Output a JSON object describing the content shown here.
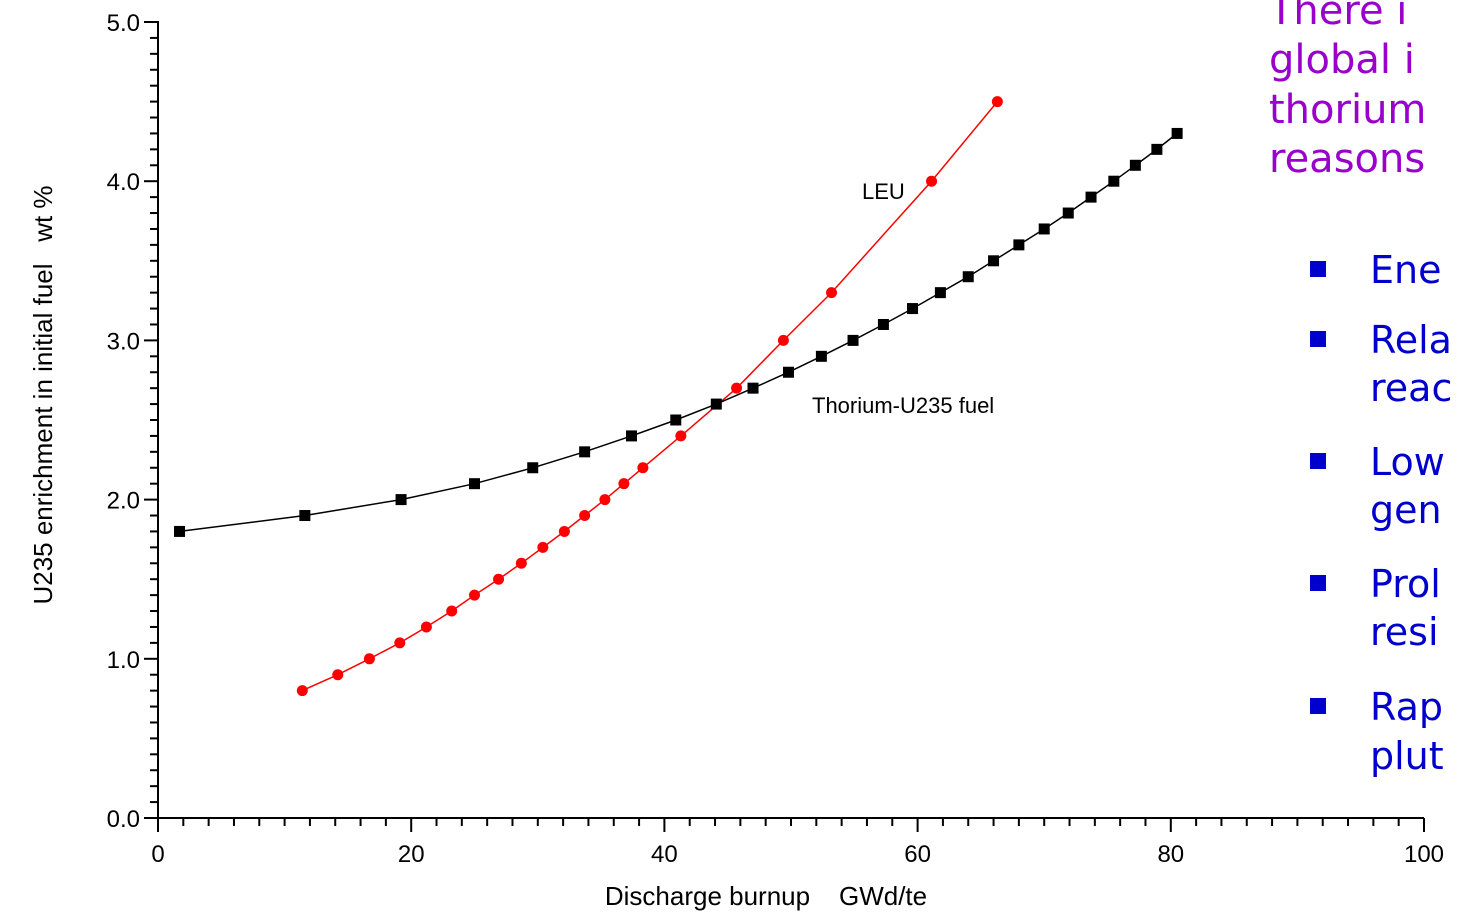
{
  "chart_data": {
    "type": "line",
    "title": "",
    "xlabel": "Discharge burnup    GWd/te",
    "ylabel": "U235 enrichment in initial fuel   wt %",
    "xlim": [
      0,
      100
    ],
    "ylim": [
      0,
      5.0
    ],
    "x_ticks": [
      "0",
      "20",
      "40",
      "60",
      "80",
      "100"
    ],
    "y_ticks": [
      "0.0",
      "1.0",
      "2.0",
      "3.0",
      "4.0",
      "5.0"
    ],
    "grid": false,
    "legend": "none",
    "series": [
      {
        "name": "LEU",
        "color": "#ff0000",
        "marker": "circle",
        "line_style": "solid",
        "points": [
          [
            11.4,
            0.8
          ],
          [
            14.2,
            0.9
          ],
          [
            16.7,
            1.0
          ],
          [
            19.1,
            1.1
          ],
          [
            21.2,
            1.2
          ],
          [
            23.2,
            1.3
          ],
          [
            25.0,
            1.4
          ],
          [
            26.9,
            1.5
          ],
          [
            28.7,
            1.6
          ],
          [
            30.4,
            1.7
          ],
          [
            32.1,
            1.8
          ],
          [
            33.7,
            1.9
          ],
          [
            35.3,
            2.0
          ],
          [
            36.8,
            2.1
          ],
          [
            38.3,
            2.2
          ],
          [
            41.3,
            2.4
          ],
          [
            45.7,
            2.7
          ],
          [
            49.4,
            3.0
          ],
          [
            53.2,
            3.3
          ],
          [
            61.1,
            4.0
          ],
          [
            66.3,
            4.5
          ]
        ]
      },
      {
        "name": "Thorium-U235 fuel",
        "color": "#000000",
        "marker": "square",
        "line_style": "solid",
        "points": [
          [
            1.7,
            1.8
          ],
          [
            11.6,
            1.9
          ],
          [
            19.2,
            2.0
          ],
          [
            25.0,
            2.1
          ],
          [
            29.6,
            2.2
          ],
          [
            33.7,
            2.3
          ],
          [
            37.4,
            2.4
          ],
          [
            40.9,
            2.5
          ],
          [
            44.1,
            2.6
          ],
          [
            47.0,
            2.7
          ],
          [
            49.8,
            2.8
          ],
          [
            52.4,
            2.9
          ],
          [
            54.9,
            3.0
          ],
          [
            57.3,
            3.1
          ],
          [
            59.6,
            3.2
          ],
          [
            61.8,
            3.3
          ],
          [
            64.0,
            3.4
          ],
          [
            66.0,
            3.5
          ],
          [
            68.0,
            3.6
          ],
          [
            70.0,
            3.7
          ],
          [
            71.9,
            3.8
          ],
          [
            73.7,
            3.9
          ],
          [
            75.5,
            4.0
          ],
          [
            77.2,
            4.1
          ],
          [
            78.9,
            4.2
          ],
          [
            80.5,
            4.3
          ]
        ]
      }
    ]
  },
  "side_text": {
    "heading_lines": [
      "There i",
      "global i",
      "thorium",
      "reasons"
    ],
    "heading_color": "#9900cc",
    "bullet_color": "#0000cc",
    "bullets": [
      {
        "lines": [
          "Ene"
        ]
      },
      {
        "lines": [
          "Rela",
          "reac"
        ]
      },
      {
        "lines": [
          "Low",
          "gen"
        ]
      },
      {
        "lines": [
          "Prol",
          "resi"
        ]
      },
      {
        "lines": [
          "Rap",
          "plut"
        ]
      }
    ]
  }
}
